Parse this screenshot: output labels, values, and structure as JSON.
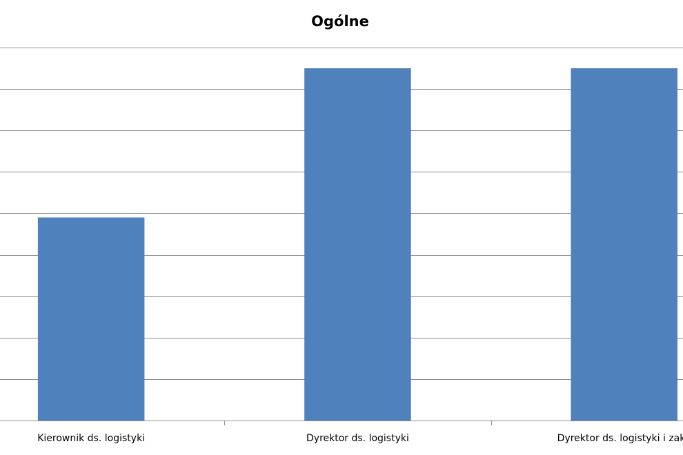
{
  "chart_data": {
    "type": "bar",
    "title": "Ogólne",
    "categories": [
      "Kierownik ds. logistyki",
      "Dyrektor ds. logistyki",
      "Dyrektor ds. logistyki i zaku"
    ],
    "values": [
      4.9,
      8.5,
      8.5
    ],
    "color": "#4f81bd",
    "ylim": [
      0,
      9
    ],
    "yticks": [
      0,
      1,
      2,
      3,
      4,
      5,
      6,
      7,
      8,
      9
    ],
    "grid": true
  }
}
